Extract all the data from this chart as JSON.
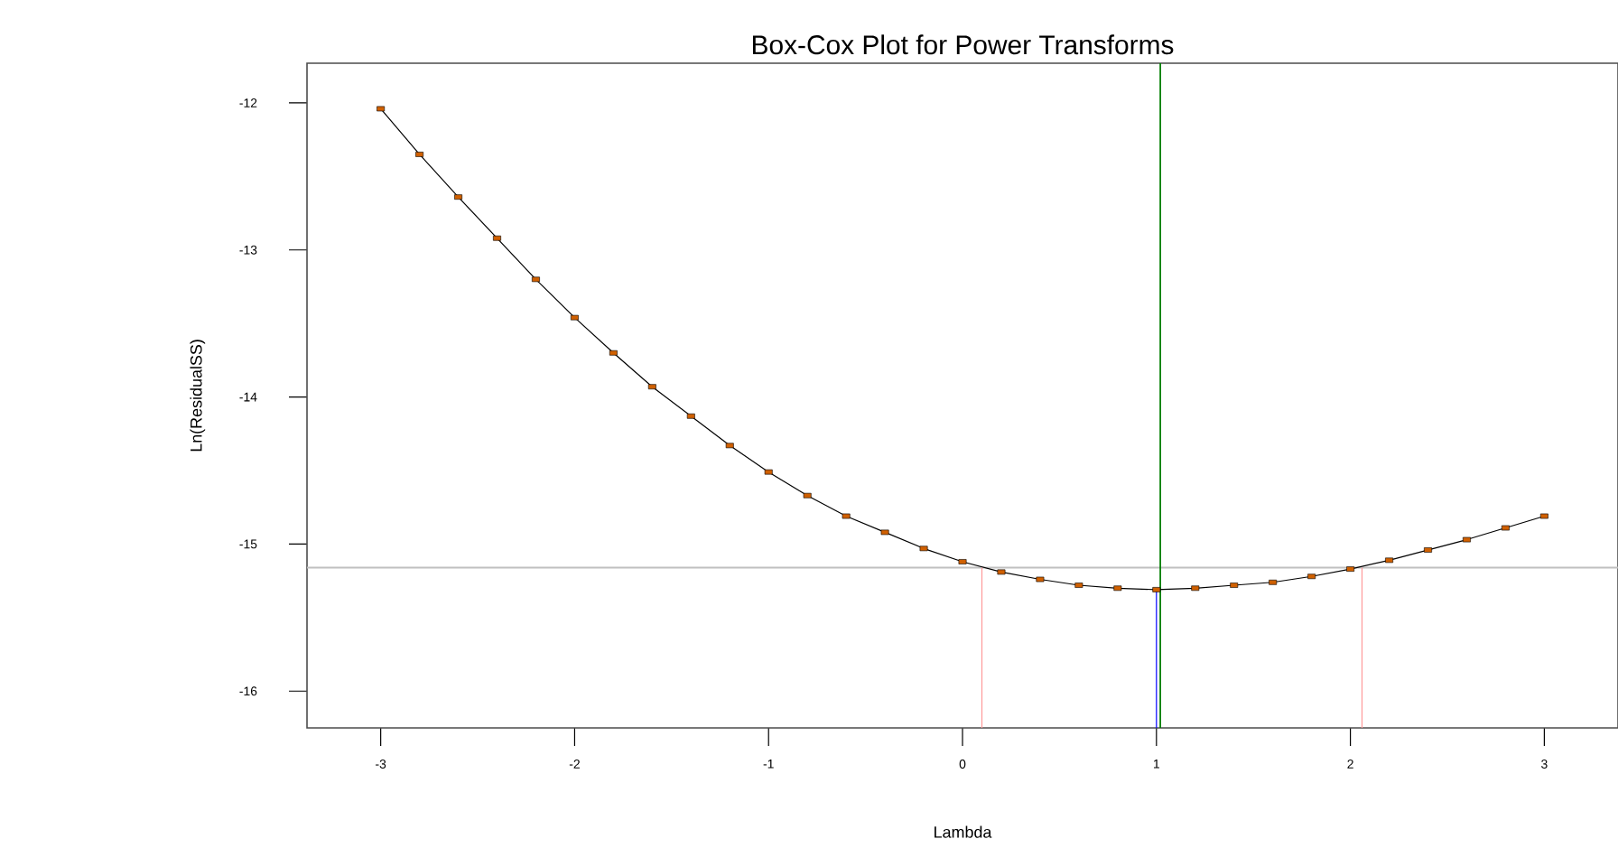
{
  "chart_data": {
    "type": "line",
    "title": "Box-Cox Plot for Power Transforms",
    "xlabel": "Lambda",
    "ylabel": "Ln(ResidualSS)",
    "xlim": [
      -3.38,
      3.38
    ],
    "ylim": [
      -16.25,
      -11.73
    ],
    "xticks": [
      -3,
      -2,
      -1,
      0,
      1,
      2,
      3
    ],
    "yticks": [
      -16,
      -15,
      -14,
      -13,
      -12
    ],
    "x": [
      -3,
      -2.8,
      -2.6,
      -2.4,
      -2.2,
      -2.0,
      -1.8,
      -1.6,
      -1.4,
      -1.2,
      -1.0,
      -0.8,
      -0.6,
      -0.4,
      -0.2,
      0,
      0.2,
      0.4,
      0.6,
      0.8,
      1.0,
      1.2,
      1.4,
      1.6,
      1.8,
      2.0,
      2.2,
      2.4,
      2.6,
      2.8,
      3.0
    ],
    "series": [
      {
        "color": "#000000",
        "marker": "none",
        "values": [
          -12.04,
          -12.35,
          -12.64,
          -12.92,
          -13.2,
          -13.46,
          -13.7,
          -13.93,
          -14.13,
          -14.33,
          -14.51,
          -14.67,
          -14.81,
          -14.92,
          -15.03,
          -15.12,
          -15.19,
          -15.24,
          -15.28,
          -15.3,
          -15.31,
          -15.3,
          -15.28,
          -15.26,
          -15.22,
          -15.17,
          -15.11,
          -15.04,
          -14.97,
          -14.89,
          -14.81
        ]
      },
      {
        "type": "scatter",
        "color": "#d06000",
        "marker": "square",
        "values": [
          -12.04,
          -12.35,
          -12.64,
          -12.92,
          -13.2,
          -13.46,
          -13.7,
          -13.93,
          -14.13,
          -14.33,
          -14.51,
          -14.67,
          -14.81,
          -14.92,
          -15.03,
          -15.12,
          -15.19,
          -15.24,
          -15.28,
          -15.3,
          -15.31,
          -15.3,
          -15.28,
          -15.26,
          -15.22,
          -15.17,
          -15.11,
          -15.04,
          -14.97,
          -14.89,
          -14.81
        ]
      },
      {
        "color": "#0000ff",
        "marker": "none",
        "x": [
          1.0,
          1.0
        ],
        "values": [
          -16.25,
          -15.31
        ]
      },
      {
        "color": "#ff9999",
        "marker": "none",
        "x": [
          0.1,
          0.1
        ],
        "values": [
          -16.25,
          -15.16
        ]
      },
      {
        "color": "#ff9999",
        "marker": "none",
        "x": [
          2.06,
          2.06
        ],
        "values": [
          -16.25,
          -15.16
        ]
      }
    ],
    "ref_lines": [
      {
        "axis": "y",
        "value": -15.16,
        "color": "#c0c0c0"
      },
      {
        "axis": "x",
        "value": 1.02,
        "color": "#008000"
      }
    ],
    "grid": false
  }
}
